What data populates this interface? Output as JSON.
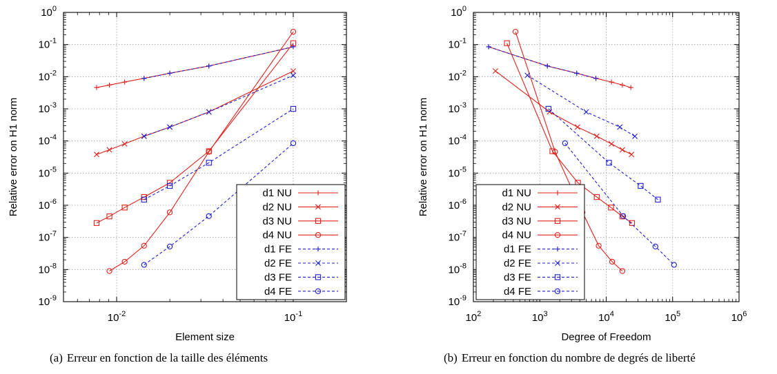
{
  "figure": {
    "captions": [
      {
        "label": "(a)",
        "text": "Erreur en fonction de la taille des éléments"
      },
      {
        "label": "(b)",
        "text": "Erreur en fonction du nombre de degrés de liberté"
      }
    ]
  },
  "colors": {
    "NU": "#e0201b",
    "FE": "#1f1fd0"
  },
  "chart_data": [
    {
      "type": "line",
      "xlabel": "Element size",
      "ylabel": "Relative error on H1 norm",
      "x_scale": "log",
      "y_scale": "log",
      "xlim": [
        0.005,
        0.2
      ],
      "ylim": [
        1e-09,
        1
      ],
      "x_ticks": [
        {
          "v": 0.01,
          "base": "10",
          "exp": "-2"
        },
        {
          "v": 0.1,
          "base": "10",
          "exp": "-1"
        }
      ],
      "y_ticks": [
        {
          "v": 1e-09,
          "base": "10",
          "exp": "-9"
        },
        {
          "v": 1e-08,
          "base": "10",
          "exp": "-8"
        },
        {
          "v": 1e-07,
          "base": "10",
          "exp": "-7"
        },
        {
          "v": 1e-06,
          "base": "10",
          "exp": "-6"
        },
        {
          "v": 1e-05,
          "base": "10",
          "exp": "-5"
        },
        {
          "v": 0.0001,
          "base": "10",
          "exp": "-4"
        },
        {
          "v": 0.001,
          "base": "10",
          "exp": "-3"
        },
        {
          "v": 0.01,
          "base": "10",
          "exp": "-2"
        },
        {
          "v": 0.1,
          "base": "10",
          "exp": "-1"
        },
        {
          "v": 1,
          "base": "10",
          "exp": "0"
        }
      ],
      "grid": true,
      "legend_position": "bottom-right",
      "series": [
        {
          "name": "d1 NU",
          "marker": "plus",
          "style": "solid",
          "group": "NU",
          "x": [
            0.0077,
            0.0091,
            0.0111,
            0.0143,
            0.02,
            0.0333,
            0.1
          ],
          "y": [
            0.0046,
            0.0055,
            0.0068,
            0.0089,
            0.0128,
            0.0215,
            0.085
          ]
        },
        {
          "name": "d2 NU",
          "marker": "cross",
          "style": "solid",
          "group": "NU",
          "x": [
            0.0077,
            0.0091,
            0.0111,
            0.0143,
            0.02,
            0.0333,
            0.1
          ],
          "y": [
            3.8e-05,
            5.3e-05,
            8.1e-05,
            0.00014,
            0.00027,
            0.0008,
            0.015
          ]
        },
        {
          "name": "d3 NU",
          "marker": "square",
          "style": "solid",
          "group": "NU",
          "x": [
            0.0077,
            0.0091,
            0.0111,
            0.0143,
            0.02,
            0.0333,
            0.1
          ],
          "y": [
            2.8e-07,
            4.5e-07,
            8.5e-07,
            1.8e-06,
            5e-06,
            4.8e-05,
            0.11
          ]
        },
        {
          "name": "d4 NU",
          "marker": "circle",
          "style": "solid",
          "group": "NU",
          "x": [
            0.0091,
            0.0111,
            0.0143,
            0.02,
            0.0333,
            0.1
          ],
          "y": [
            9e-09,
            1.75e-08,
            5.5e-08,
            6e-07,
            4.6e-05,
            0.25
          ]
        },
        {
          "name": "d1 FE",
          "marker": "plus",
          "style": "dashed",
          "group": "FE",
          "x": [
            0.0143,
            0.02,
            0.0333,
            0.1
          ],
          "y": [
            0.0088,
            0.0128,
            0.0215,
            0.085
          ]
        },
        {
          "name": "d2 FE",
          "marker": "cross",
          "style": "dashed",
          "group": "FE",
          "x": [
            0.0143,
            0.02,
            0.0333,
            0.1
          ],
          "y": [
            0.00014,
            0.00027,
            0.0008,
            0.011
          ]
        },
        {
          "name": "d3 FE",
          "marker": "square",
          "style": "dashed",
          "group": "FE",
          "x": [
            0.0143,
            0.02,
            0.0333,
            0.1
          ],
          "y": [
            1.5e-06,
            4e-06,
            2.1e-05,
            0.001
          ]
        },
        {
          "name": "d4 FE",
          "marker": "circle",
          "style": "dashed",
          "group": "FE",
          "x": [
            0.0143,
            0.02,
            0.0333,
            0.1
          ],
          "y": [
            1.4e-08,
            5.2e-08,
            4.6e-07,
            8.5e-05
          ]
        }
      ]
    },
    {
      "type": "line",
      "xlabel": "Degree of Freedom",
      "ylabel": "Relative error on H1 norm",
      "x_scale": "log",
      "y_scale": "log",
      "xlim": [
        100,
        1000000
      ],
      "ylim": [
        1e-09,
        1
      ],
      "x_ticks": [
        {
          "v": 100,
          "base": "10",
          "exp": "2"
        },
        {
          "v": 1000,
          "base": "10",
          "exp": "3"
        },
        {
          "v": 10000,
          "base": "10",
          "exp": "4"
        },
        {
          "v": 100000,
          "base": "10",
          "exp": "5"
        },
        {
          "v": 1000000,
          "base": "10",
          "exp": "6"
        }
      ],
      "y_ticks": [
        {
          "v": 1e-09,
          "base": "10",
          "exp": "-9"
        },
        {
          "v": 1e-08,
          "base": "10",
          "exp": "-8"
        },
        {
          "v": 1e-07,
          "base": "10",
          "exp": "-7"
        },
        {
          "v": 1e-06,
          "base": "10",
          "exp": "-6"
        },
        {
          "v": 1e-05,
          "base": "10",
          "exp": "-5"
        },
        {
          "v": 0.0001,
          "base": "10",
          "exp": "-4"
        },
        {
          "v": 0.001,
          "base": "10",
          "exp": "-3"
        },
        {
          "v": 0.01,
          "base": "10",
          "exp": "-2"
        },
        {
          "v": 0.1,
          "base": "10",
          "exp": "-1"
        },
        {
          "v": 1,
          "base": "10",
          "exp": "0"
        }
      ],
      "grid": true,
      "legend_position": "bottom-left",
      "series": [
        {
          "name": "d1 NU",
          "marker": "plus",
          "style": "solid",
          "group": "NU",
          "x": [
            170,
            1300,
            3600,
            7000,
            12000,
            17500,
            23500
          ],
          "y": [
            0.085,
            0.0215,
            0.0128,
            0.0089,
            0.0068,
            0.0055,
            0.0046
          ]
        },
        {
          "name": "d2 NU",
          "marker": "cross",
          "style": "solid",
          "group": "NU",
          "x": [
            215,
            1400,
            3700,
            7200,
            12000,
            17500,
            24000
          ],
          "y": [
            0.015,
            0.0008,
            0.00027,
            0.00014,
            8.1e-05,
            5.3e-05,
            3.8e-05
          ]
        },
        {
          "name": "d3 NU",
          "marker": "square",
          "style": "solid",
          "group": "NU",
          "x": [
            320,
            1550,
            3750,
            7200,
            11800,
            17500,
            24500
          ],
          "y": [
            0.11,
            4.8e-05,
            5e-06,
            1.8e-06,
            8.5e-07,
            4.5e-07,
            2.8e-07
          ]
        },
        {
          "name": "d4 NU",
          "marker": "circle",
          "style": "solid",
          "group": "NU",
          "x": [
            430,
            1700,
            4400,
            7700,
            12300,
            17500
          ],
          "y": [
            0.25,
            4.6e-05,
            6e-07,
            5.5e-08,
            1.75e-08,
            9e-09
          ]
        },
        {
          "name": "d1 FE",
          "marker": "plus",
          "style": "dashed",
          "group": "FE",
          "x": [
            170,
            1300,
            3600,
            7000
          ],
          "y": [
            0.085,
            0.0215,
            0.0128,
            0.0088
          ]
        },
        {
          "name": "d2 FE",
          "marker": "cross",
          "style": "dashed",
          "group": "FE",
          "x": [
            650,
            5000,
            16000,
            27000
          ],
          "y": [
            0.011,
            0.0008,
            0.00027,
            0.00014
          ]
        },
        {
          "name": "d3 FE",
          "marker": "square",
          "style": "dashed",
          "group": "FE",
          "x": [
            1350,
            11000,
            33000,
            60000
          ],
          "y": [
            0.001,
            2.1e-05,
            4e-06,
            1.5e-06
          ]
        },
        {
          "name": "d4 FE",
          "marker": "circle",
          "style": "dashed",
          "group": "FE",
          "x": [
            2400,
            18000,
            55000,
            105000
          ],
          "y": [
            8.5e-05,
            4.6e-07,
            5.2e-08,
            1.4e-08
          ]
        }
      ]
    }
  ]
}
